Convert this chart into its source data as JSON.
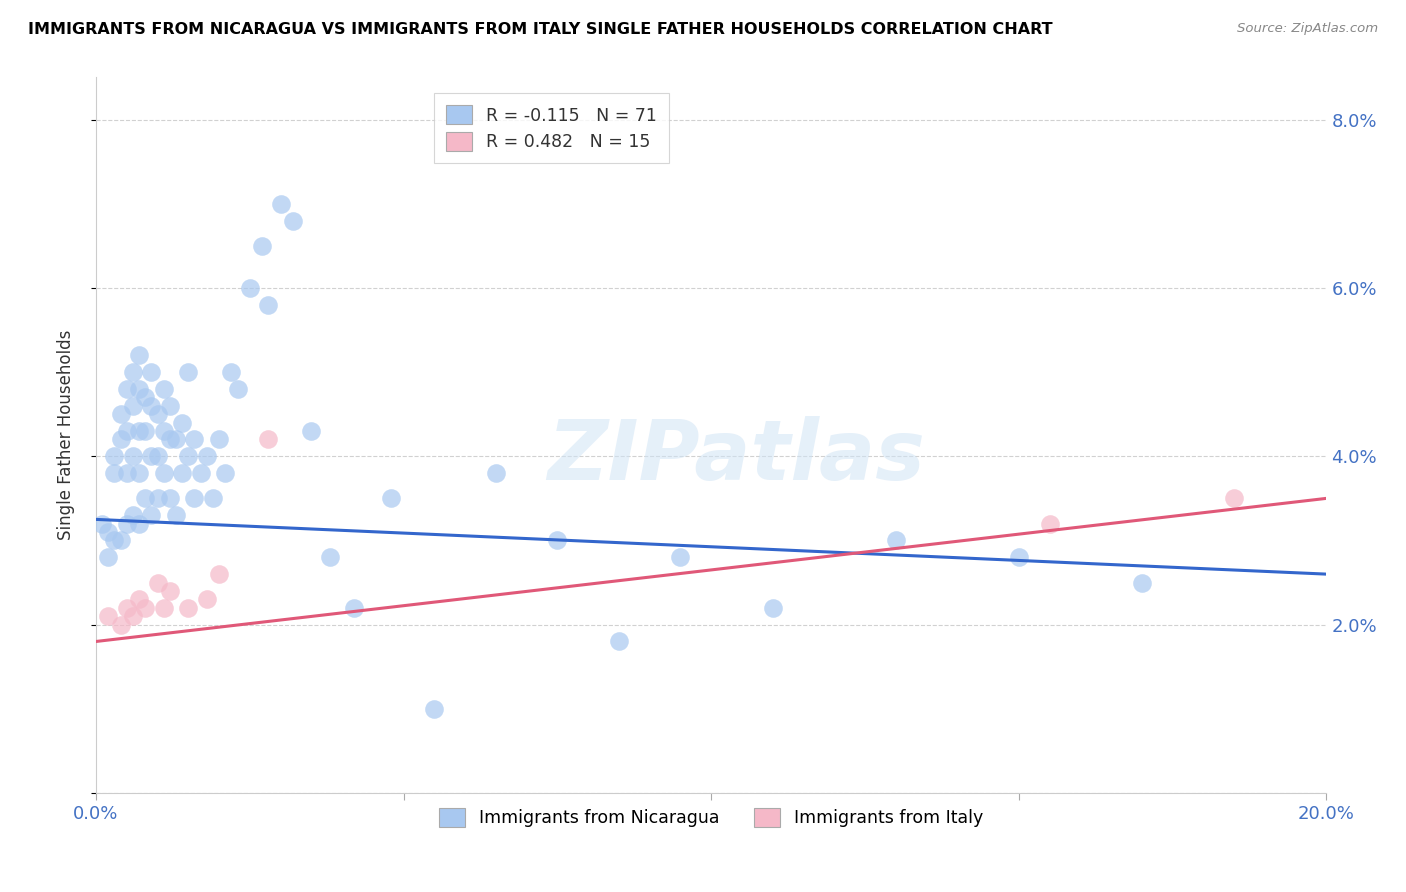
{
  "title": "IMMIGRANTS FROM NICARAGUA VS IMMIGRANTS FROM ITALY SINGLE FATHER HOUSEHOLDS CORRELATION CHART",
  "source": "Source: ZipAtlas.com",
  "ylabel": "Single Father Households",
  "xlim": [
    0.0,
    0.2
  ],
  "ylim": [
    0.0,
    0.085
  ],
  "ytick_vals": [
    0.0,
    0.02,
    0.04,
    0.06,
    0.08
  ],
  "ytick_labels": [
    "",
    "2.0%",
    "4.0%",
    "6.0%",
    "8.0%"
  ],
  "xtick_vals": [
    0.0,
    0.05,
    0.1,
    0.15,
    0.2
  ],
  "xtick_labels": [
    "0.0%",
    "",
    "",
    "",
    "20.0%"
  ],
  "nicaragua_R": -0.115,
  "nicaragua_N": 71,
  "italy_R": 0.482,
  "italy_N": 15,
  "nicaragua_color": "#a8c8f0",
  "italy_color": "#f5b8c8",
  "nicaragua_line_color": "#3366cc",
  "italy_line_color": "#e05878",
  "watermark_text": "ZIPatlas",
  "nicaragua_x": [
    0.001,
    0.002,
    0.002,
    0.003,
    0.003,
    0.003,
    0.004,
    0.004,
    0.004,
    0.005,
    0.005,
    0.005,
    0.005,
    0.006,
    0.006,
    0.006,
    0.006,
    0.007,
    0.007,
    0.007,
    0.007,
    0.007,
    0.008,
    0.008,
    0.008,
    0.009,
    0.009,
    0.009,
    0.009,
    0.01,
    0.01,
    0.01,
    0.011,
    0.011,
    0.011,
    0.012,
    0.012,
    0.012,
    0.013,
    0.013,
    0.014,
    0.014,
    0.015,
    0.015,
    0.016,
    0.016,
    0.017,
    0.018,
    0.019,
    0.02,
    0.021,
    0.022,
    0.023,
    0.025,
    0.027,
    0.028,
    0.03,
    0.032,
    0.035,
    0.038,
    0.042,
    0.048,
    0.055,
    0.065,
    0.075,
    0.085,
    0.095,
    0.11,
    0.13,
    0.15,
    0.17
  ],
  "nicaragua_y": [
    0.032,
    0.031,
    0.028,
    0.04,
    0.038,
    0.03,
    0.045,
    0.042,
    0.03,
    0.048,
    0.043,
    0.038,
    0.032,
    0.05,
    0.046,
    0.04,
    0.033,
    0.052,
    0.048,
    0.043,
    0.038,
    0.032,
    0.047,
    0.043,
    0.035,
    0.05,
    0.046,
    0.04,
    0.033,
    0.045,
    0.04,
    0.035,
    0.048,
    0.043,
    0.038,
    0.046,
    0.042,
    0.035,
    0.042,
    0.033,
    0.044,
    0.038,
    0.05,
    0.04,
    0.042,
    0.035,
    0.038,
    0.04,
    0.035,
    0.042,
    0.038,
    0.05,
    0.048,
    0.06,
    0.065,
    0.058,
    0.07,
    0.068,
    0.043,
    0.028,
    0.022,
    0.035,
    0.01,
    0.038,
    0.03,
    0.018,
    0.028,
    0.022,
    0.03,
    0.028,
    0.025
  ],
  "italy_x": [
    0.002,
    0.004,
    0.005,
    0.006,
    0.007,
    0.008,
    0.01,
    0.011,
    0.012,
    0.015,
    0.018,
    0.02,
    0.028,
    0.155,
    0.185
  ],
  "italy_y": [
    0.021,
    0.02,
    0.022,
    0.021,
    0.023,
    0.022,
    0.025,
    0.022,
    0.024,
    0.022,
    0.023,
    0.026,
    0.042,
    0.032,
    0.035
  ],
  "nic_line_x": [
    0.0,
    0.2
  ],
  "nic_line_y": [
    0.0325,
    0.026
  ],
  "ita_line_x": [
    0.0,
    0.2
  ],
  "ita_line_y": [
    0.018,
    0.035
  ]
}
